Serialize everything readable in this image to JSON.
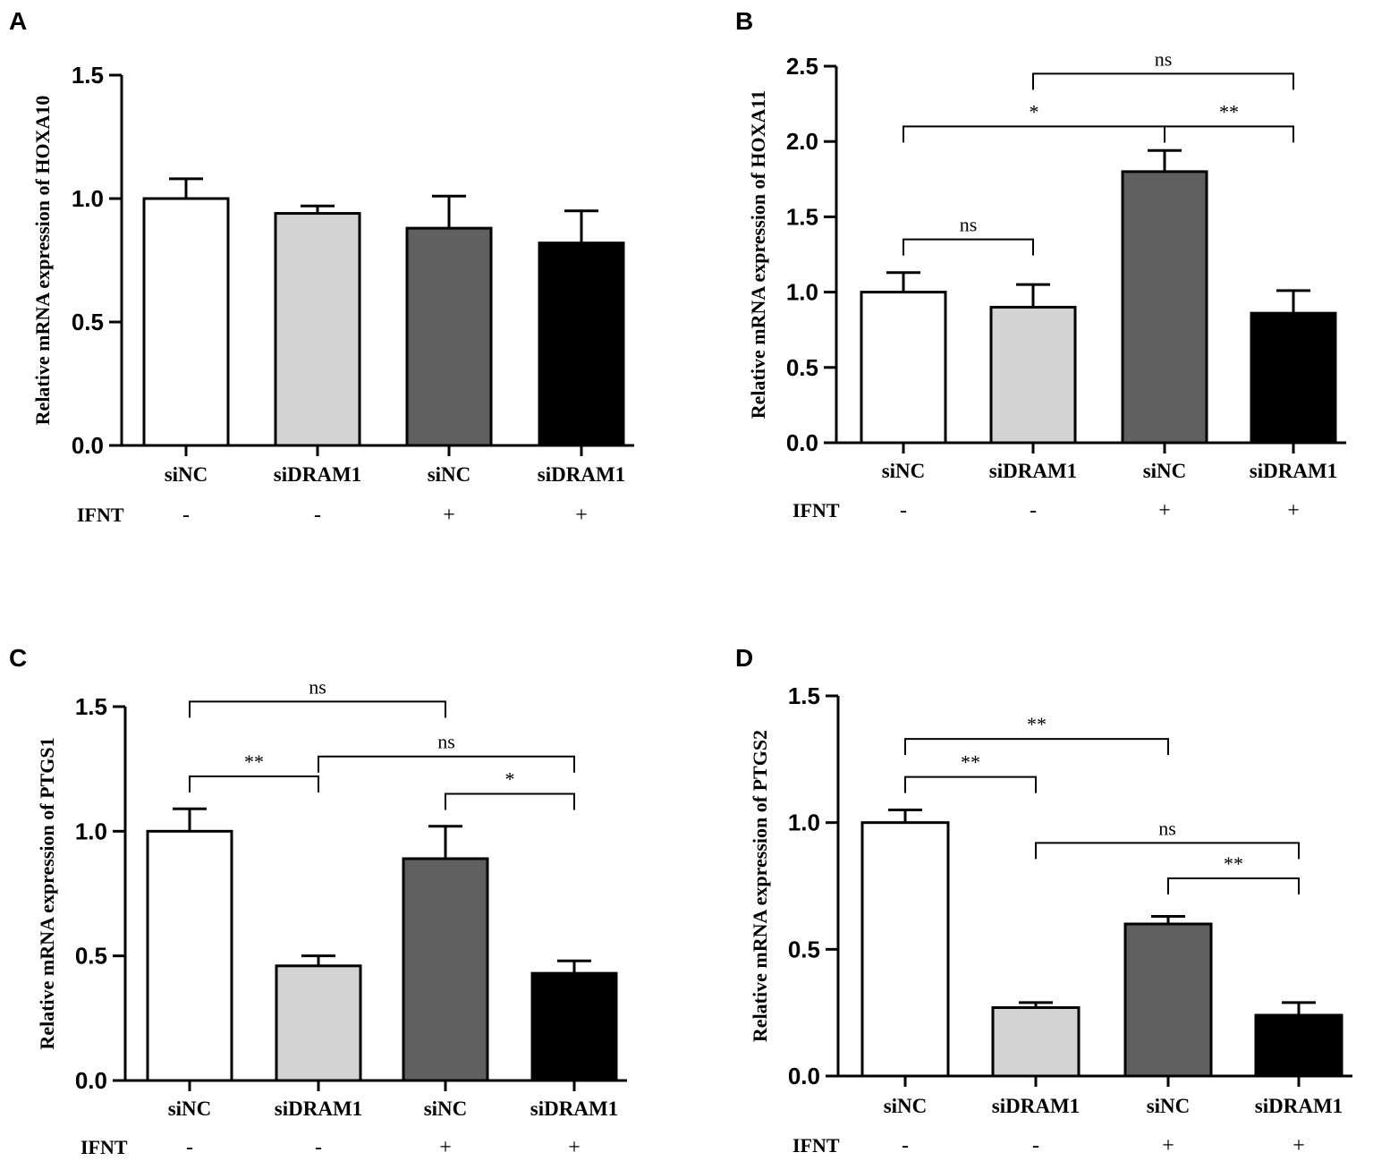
{
  "chart_data": [
    {
      "panel": "A",
      "type": "bar",
      "title": "",
      "xlabel": "",
      "ylabel": "Relative mRNA expression of HOXA10",
      "ylim": [
        0,
        1.5
      ],
      "yticks": [
        0.0,
        0.5,
        1.0,
        1.5
      ],
      "ytick_labels": [
        "0.0",
        "0.5",
        "1.0",
        "1.5"
      ],
      "categories": [
        "siNC",
        "siDRAM1",
        "siNC",
        "siDRAM1"
      ],
      "condition_name": "IFNT",
      "conditions": [
        "-",
        "-",
        "+",
        "+"
      ],
      "values": [
        1.0,
        0.94,
        0.88,
        0.82
      ],
      "errors": [
        0.08,
        0.03,
        0.13,
        0.13
      ],
      "colors": [
        "#ffffff",
        "#d3d3d3",
        "#606060",
        "#000000"
      ],
      "significance": []
    },
    {
      "panel": "B",
      "type": "bar",
      "title": "",
      "xlabel": "",
      "ylabel": "Relative mRNA expression of HOXA11",
      "ylim": [
        0,
        2.5
      ],
      "yticks": [
        0.0,
        0.5,
        1.0,
        1.5,
        2.0,
        2.5
      ],
      "ytick_labels": [
        "0.0",
        "0.5",
        "1.0",
        "1.5",
        "2.0",
        "2.5"
      ],
      "categories": [
        "siNC",
        "siDRAM1",
        "siNC",
        "siDRAM1"
      ],
      "condition_name": "IFNT",
      "conditions": [
        "-",
        "-",
        "+",
        "+"
      ],
      "values": [
        1.0,
        0.9,
        1.8,
        0.86
      ],
      "errors": [
        0.13,
        0.15,
        0.14,
        0.15
      ],
      "colors": [
        "#ffffff",
        "#d3d3d3",
        "#606060",
        "#000000"
      ],
      "significance": [
        {
          "from": 0,
          "to": 1,
          "label": "ns",
          "level": 1.35
        },
        {
          "from": 0,
          "to": 2,
          "label": "*",
          "level": 2.1
        },
        {
          "from": 2,
          "to": 3,
          "label": "**",
          "level": 2.1
        },
        {
          "from": 1,
          "to": 3,
          "label": "ns",
          "level": 2.45
        }
      ]
    },
    {
      "panel": "C",
      "type": "bar",
      "title": "",
      "xlabel": "",
      "ylabel": "Relative mRNA expression of PTGS1",
      "ylim": [
        0,
        1.5
      ],
      "yticks": [
        0.0,
        0.5,
        1.0,
        1.5
      ],
      "ytick_labels": [
        "0.0",
        "0.5",
        "1.0",
        "1.5"
      ],
      "categories": [
        "siNC",
        "siDRAM1",
        "siNC",
        "siDRAM1"
      ],
      "condition_name": "IFNT",
      "conditions": [
        "-",
        "-",
        "+",
        "+"
      ],
      "values": [
        1.0,
        0.46,
        0.89,
        0.43
      ],
      "errors": [
        0.09,
        0.04,
        0.13,
        0.05
      ],
      "colors": [
        "#ffffff",
        "#d3d3d3",
        "#606060",
        "#000000"
      ],
      "significance": [
        {
          "from": 0,
          "to": 2,
          "label": "ns",
          "level": 1.52
        },
        {
          "from": 1,
          "to": 3,
          "label": "ns",
          "level": 1.3
        },
        {
          "from": 0,
          "to": 1,
          "label": "**",
          "level": 1.22
        },
        {
          "from": 2,
          "to": 3,
          "label": "*",
          "level": 1.15
        }
      ]
    },
    {
      "panel": "D",
      "type": "bar",
      "title": "",
      "xlabel": "",
      "ylabel": "Relative mRNA expression of PTGS2",
      "ylim": [
        0,
        1.5
      ],
      "yticks": [
        0.0,
        0.5,
        1.0,
        1.5
      ],
      "ytick_labels": [
        "0.0",
        "0.5",
        "1.0",
        "1.5"
      ],
      "categories": [
        "siNC",
        "siDRAM1",
        "siNC",
        "siDRAM1"
      ],
      "condition_name": "IFNT",
      "conditions": [
        "-",
        "-",
        "+",
        "+"
      ],
      "values": [
        1.0,
        0.27,
        0.6,
        0.24
      ],
      "errors": [
        0.05,
        0.02,
        0.03,
        0.05
      ],
      "colors": [
        "#ffffff",
        "#d3d3d3",
        "#606060",
        "#000000"
      ],
      "significance": [
        {
          "from": 0,
          "to": 2,
          "label": "**",
          "level": 1.33
        },
        {
          "from": 0,
          "to": 1,
          "label": "**",
          "level": 1.18
        },
        {
          "from": 1,
          "to": 3,
          "label": "ns",
          "level": 0.92
        },
        {
          "from": 2,
          "to": 3,
          "label": "**",
          "level": 0.78
        }
      ]
    }
  ]
}
